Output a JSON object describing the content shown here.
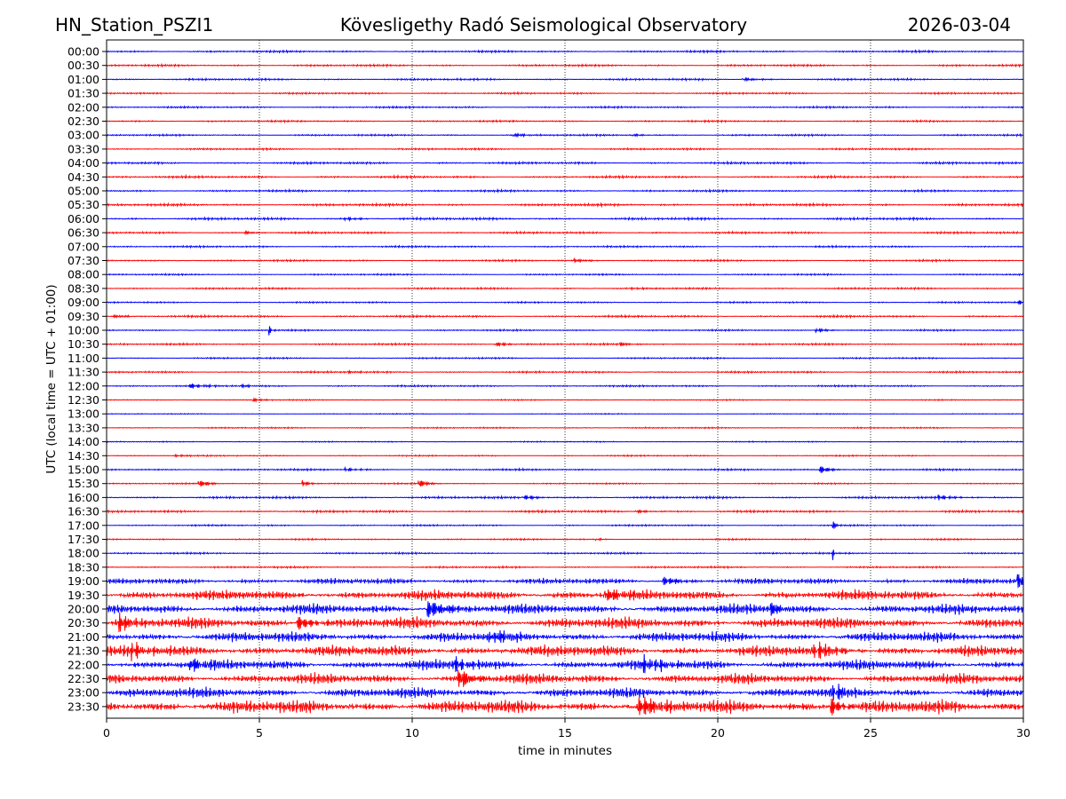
{
  "header": {
    "station": "HN_Station_PSZI1",
    "observatory": "Kövesligethy Radó Seismological Observatory",
    "date": "2026-03-04"
  },
  "chart_data": {
    "type": "line",
    "title": "Kövesligethy Radó Seismological Observatory",
    "xlabel": "time in minutes",
    "ylabel": "UTC (local time = UTC + 01:00)",
    "xlim": [
      0,
      30
    ],
    "xticks": [
      "0",
      "5",
      "10",
      "15",
      "20",
      "25",
      "30"
    ],
    "grid": "vertical dotted at 5-minute intervals",
    "colors": {
      "blue": "#0000ff",
      "red": "#ff0000"
    },
    "rows": [
      {
        "label": "00:00",
        "color": "blue",
        "noise": 0.9,
        "events": []
      },
      {
        "label": "00:30",
        "color": "red",
        "noise": 0.9,
        "events": []
      },
      {
        "label": "01:00",
        "color": "blue",
        "noise": 0.9,
        "events": [
          {
            "t": 20.8,
            "amp": 1.5,
            "dur": 0.6
          }
        ]
      },
      {
        "label": "01:30",
        "color": "red",
        "noise": 0.8,
        "events": []
      },
      {
        "label": "02:00",
        "color": "blue",
        "noise": 0.8,
        "events": []
      },
      {
        "label": "02:30",
        "color": "red",
        "noise": 0.8,
        "events": []
      },
      {
        "label": "03:00",
        "color": "blue",
        "noise": 0.8,
        "events": [
          {
            "t": 13.3,
            "amp": 2,
            "dur": 0.3
          },
          {
            "t": 17.2,
            "amp": 1.5,
            "dur": 0.3
          }
        ]
      },
      {
        "label": "03:30",
        "color": "red",
        "noise": 0.8,
        "events": []
      },
      {
        "label": "04:00",
        "color": "blue",
        "noise": 1.0,
        "events": []
      },
      {
        "label": "04:30",
        "color": "red",
        "noise": 1.0,
        "events": []
      },
      {
        "label": "05:00",
        "color": "blue",
        "noise": 0.9,
        "events": []
      },
      {
        "label": "05:30",
        "color": "red",
        "noise": 1.1,
        "events": []
      },
      {
        "label": "06:00",
        "color": "blue",
        "noise": 1.1,
        "events": [
          {
            "t": 7.8,
            "amp": 2,
            "dur": 0.4
          }
        ]
      },
      {
        "label": "06:30",
        "color": "red",
        "noise": 0.9,
        "events": [
          {
            "t": 4.5,
            "amp": 1.5,
            "dur": 0.4
          }
        ]
      },
      {
        "label": "07:00",
        "color": "blue",
        "noise": 0.8,
        "events": []
      },
      {
        "label": "07:30",
        "color": "red",
        "noise": 0.8,
        "events": [
          {
            "t": 15.3,
            "amp": 2,
            "dur": 0.4
          }
        ]
      },
      {
        "label": "08:00",
        "color": "blue",
        "noise": 0.7,
        "events": []
      },
      {
        "label": "08:30",
        "color": "red",
        "noise": 0.8,
        "events": [
          {
            "t": 17.1,
            "amp": 1.5,
            "dur": 0.2
          }
        ]
      },
      {
        "label": "09:00",
        "color": "blue",
        "noise": 0.7,
        "events": [
          {
            "t": 29.8,
            "amp": 3,
            "dur": 0.3
          }
        ]
      },
      {
        "label": "09:30",
        "color": "red",
        "noise": 0.9,
        "events": [
          {
            "t": 0.2,
            "amp": 2,
            "dur": 0.3
          }
        ]
      },
      {
        "label": "10:00",
        "color": "blue",
        "noise": 0.7,
        "events": [
          {
            "t": 5.3,
            "amp": 8,
            "dur": 0.06
          },
          {
            "t": 23.2,
            "amp": 2,
            "dur": 0.4
          }
        ]
      },
      {
        "label": "10:30",
        "color": "red",
        "noise": 0.8,
        "events": [
          {
            "t": 12.7,
            "amp": 2.5,
            "dur": 0.4
          },
          {
            "t": 16.8,
            "amp": 1.5,
            "dur": 0.4
          }
        ]
      },
      {
        "label": "11:00",
        "color": "blue",
        "noise": 0.7,
        "events": []
      },
      {
        "label": "11:30",
        "color": "red",
        "noise": 0.8,
        "events": [
          {
            "t": 7.9,
            "amp": 1.5,
            "dur": 0.3
          }
        ]
      },
      {
        "label": "12:00",
        "color": "blue",
        "noise": 0.8,
        "events": [
          {
            "t": 2.7,
            "amp": 2.5,
            "dur": 0.5
          },
          {
            "t": 4.4,
            "amp": 1.5,
            "dur": 0.3
          }
        ]
      },
      {
        "label": "12:30",
        "color": "red",
        "noise": 0.5,
        "events": [
          {
            "t": 4.8,
            "amp": 2,
            "dur": 0.3
          }
        ]
      },
      {
        "label": "13:00",
        "color": "blue",
        "noise": 0.4,
        "events": []
      },
      {
        "label": "13:30",
        "color": "red",
        "noise": 0.6,
        "events": []
      },
      {
        "label": "14:00",
        "color": "blue",
        "noise": 0.5,
        "events": []
      },
      {
        "label": "14:30",
        "color": "red",
        "noise": 0.6,
        "events": [
          {
            "t": 2.2,
            "amp": 1.5,
            "dur": 0.3
          }
        ]
      },
      {
        "label": "15:00",
        "color": "blue",
        "noise": 0.8,
        "events": [
          {
            "t": 7.8,
            "amp": 2,
            "dur": 0.4
          },
          {
            "t": 23.3,
            "amp": 5,
            "dur": 0.3
          }
        ]
      },
      {
        "label": "15:30",
        "color": "red",
        "noise": 0.6,
        "events": [
          {
            "t": 3.0,
            "amp": 5,
            "dur": 0.25
          },
          {
            "t": 6.4,
            "amp": 4,
            "dur": 0.2
          },
          {
            "t": 10.2,
            "amp": 5,
            "dur": 0.25
          }
        ]
      },
      {
        "label": "16:00",
        "color": "blue",
        "noise": 1.0,
        "events": [
          {
            "t": 13.6,
            "amp": 3,
            "dur": 0.4
          },
          {
            "t": 27.2,
            "amp": 2.5,
            "dur": 0.5
          }
        ]
      },
      {
        "label": "16:30",
        "color": "red",
        "noise": 1.0,
        "events": [
          {
            "t": 17.3,
            "amp": 2,
            "dur": 0.4
          }
        ]
      },
      {
        "label": "17:00",
        "color": "blue",
        "noise": 0.7,
        "events": [
          {
            "t": 23.75,
            "amp": 12,
            "dur": 0.05
          }
        ]
      },
      {
        "label": "17:30",
        "color": "red",
        "noise": 0.7,
        "events": [
          {
            "t": 16.0,
            "amp": 1.5,
            "dur": 0.2
          }
        ]
      },
      {
        "label": "18:00",
        "color": "blue",
        "noise": 0.8,
        "events": [
          {
            "t": 23.75,
            "amp": 10,
            "dur": 0.05
          }
        ]
      },
      {
        "label": "18:30",
        "color": "red",
        "noise": 0.8,
        "events": []
      },
      {
        "label": "19:00",
        "color": "blue",
        "noise": 2.5,
        "events": [
          {
            "t": 18.2,
            "amp": 5,
            "dur": 0.5
          },
          {
            "t": 29.8,
            "amp": 9,
            "dur": 0.6
          }
        ]
      },
      {
        "label": "19:30",
        "color": "red",
        "noise": 4.5,
        "events": [
          {
            "t": 16.3,
            "amp": 8,
            "dur": 0.5
          }
        ]
      },
      {
        "label": "20:00",
        "color": "blue",
        "noise": 4.5,
        "events": [
          {
            "t": 10.5,
            "amp": 10,
            "dur": 0.6
          },
          {
            "t": 21.7,
            "amp": 12,
            "dur": 0.2
          }
        ]
      },
      {
        "label": "20:30",
        "color": "red",
        "noise": 5,
        "events": [
          {
            "t": 6.2,
            "amp": 9,
            "dur": 0.5
          },
          {
            "t": 0.4,
            "amp": 9,
            "dur": 0.4
          }
        ]
      },
      {
        "label": "21:00",
        "color": "blue",
        "noise": 4.5,
        "events": [
          {
            "t": 12.5,
            "amp": 7,
            "dur": 0.5
          }
        ]
      },
      {
        "label": "21:30",
        "color": "red",
        "noise": 5,
        "events": [
          {
            "t": 23.1,
            "amp": 9,
            "dur": 0.5
          },
          {
            "t": 0.8,
            "amp": 8,
            "dur": 0.4
          }
        ]
      },
      {
        "label": "22:00",
        "color": "blue",
        "noise": 4.5,
        "events": [
          {
            "t": 2.7,
            "amp": 7,
            "dur": 0.5
          },
          {
            "t": 11.4,
            "amp": 7,
            "dur": 0.6
          },
          {
            "t": 17.5,
            "amp": 7,
            "dur": 0.8
          }
        ]
      },
      {
        "label": "22:30",
        "color": "red",
        "noise": 4.5,
        "events": [
          {
            "t": 11.5,
            "amp": 10,
            "dur": 0.5
          }
        ]
      },
      {
        "label": "23:00",
        "color": "blue",
        "noise": 4.5,
        "events": [
          {
            "t": 23.7,
            "amp": 9,
            "dur": 0.4
          }
        ]
      },
      {
        "label": "23:30",
        "color": "red",
        "noise": 6,
        "events": [
          {
            "t": 17.4,
            "amp": 11,
            "dur": 0.6
          },
          {
            "t": 23.7,
            "amp": 11,
            "dur": 0.3
          }
        ]
      }
    ]
  }
}
